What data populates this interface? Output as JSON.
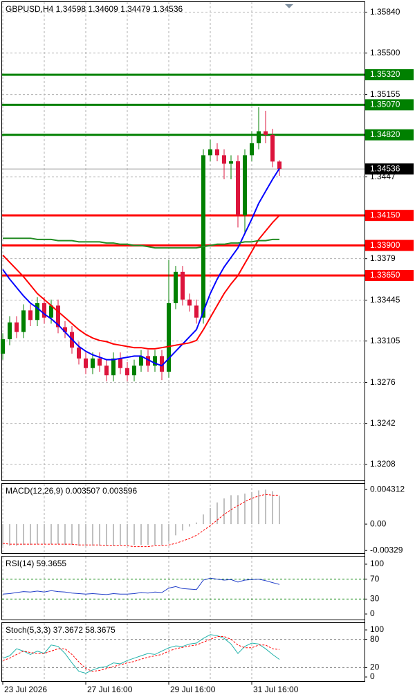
{
  "chart_data": [
    {
      "type": "candlestick",
      "title": "GBPUSD,H4  1.34598 1.34609 1.34479 1.34536",
      "categories": [
        "23 Jul 2026",
        null,
        null,
        null,
        null,
        null,
        null,
        null,
        null,
        null,
        null,
        null,
        "27 Jul 16:00",
        null,
        null,
        null,
        null,
        null,
        null,
        null,
        null,
        null,
        null,
        null,
        "29 Jul 16:00",
        null,
        null,
        null,
        null,
        null,
        null,
        null,
        null,
        null,
        null,
        null,
        "31 Jul 16:00",
        null,
        null,
        null,
        null
      ],
      "open": [
        1.33,
        1.3312,
        1.3326,
        1.3318,
        1.3336,
        1.3328,
        1.3342,
        1.333,
        1.334,
        1.3322,
        1.3318,
        1.3305,
        1.3296,
        1.3288,
        1.3296,
        1.329,
        1.3282,
        1.3296,
        1.3288,
        1.3282,
        1.329,
        1.3298,
        1.329,
        1.3298,
        1.3285,
        1.3342,
        1.3368,
        1.3345,
        1.334,
        1.333,
        1.3465,
        1.347,
        1.3465,
        1.3458,
        1.346,
        1.3415,
        1.3465,
        1.3475,
        1.3485,
        1.3482,
        1.34598
      ],
      "high": [
        1.3317,
        1.3331,
        1.3331,
        1.3341,
        1.3341,
        1.3347,
        1.3347,
        1.3345,
        1.3345,
        1.3327,
        1.3323,
        1.331,
        1.3301,
        1.3301,
        1.3301,
        1.3295,
        1.3301,
        1.3301,
        1.3293,
        1.3295,
        1.3303,
        1.3303,
        1.3303,
        1.3303,
        1.3378,
        1.3373,
        1.3373,
        1.335,
        1.3345,
        1.347,
        1.3478,
        1.3475,
        1.347,
        1.3465,
        1.3465,
        1.347,
        1.3485,
        1.3505,
        1.3502,
        1.3487,
        1.34609
      ],
      "low": [
        1.3295,
        1.3307,
        1.3313,
        1.3313,
        1.3323,
        1.3323,
        1.3325,
        1.3325,
        1.3317,
        1.3313,
        1.33,
        1.3291,
        1.3283,
        1.3283,
        1.3285,
        1.3277,
        1.3277,
        1.3283,
        1.3277,
        1.3277,
        1.3285,
        1.3285,
        1.3285,
        1.3278,
        1.328,
        1.3337,
        1.334,
        1.3335,
        1.3325,
        1.3325,
        1.346,
        1.346,
        1.3445,
        1.3445,
        1.3405,
        1.34,
        1.346,
        1.347,
        1.3475,
        1.3455,
        1.34479
      ],
      "close": [
        1.3312,
        1.3326,
        1.3318,
        1.3336,
        1.3328,
        1.3342,
        1.333,
        1.334,
        1.3322,
        1.3318,
        1.3305,
        1.3296,
        1.3288,
        1.3296,
        1.329,
        1.3282,
        1.3296,
        1.3288,
        1.3282,
        1.329,
        1.3298,
        1.329,
        1.3298,
        1.3285,
        1.3342,
        1.3368,
        1.3345,
        1.334,
        1.333,
        1.3465,
        1.347,
        1.3465,
        1.3458,
        1.346,
        1.3415,
        1.3465,
        1.3475,
        1.3485,
        1.3482,
        1.34598,
        1.34536
      ],
      "up_color": "#008000",
      "down_color": "#dc143c",
      "lines": [
        {
          "color": "#0000ff",
          "values": [
            1.337,
            1.3362,
            1.3355,
            1.3348,
            1.3342,
            1.3338,
            1.3333,
            1.3329,
            1.3324,
            1.3318,
            1.3312,
            1.3306,
            1.3302,
            1.3299,
            1.3297,
            1.3295,
            1.3295,
            1.3296,
            1.3297,
            1.3298,
            1.3298,
            1.3295,
            1.3292,
            1.329,
            1.3296,
            1.3302,
            1.3308,
            1.3314,
            1.332,
            1.3335,
            1.335,
            1.3362,
            1.3372,
            1.338,
            1.3388,
            1.34,
            1.3412,
            1.3425,
            1.3435,
            1.3445,
            1.3454
          ]
        },
        {
          "color": "#ff0000",
          "values": [
            1.3382,
            1.3376,
            1.337,
            1.3364,
            1.3357,
            1.335,
            1.3345,
            1.334,
            1.3335,
            1.333,
            1.3325,
            1.332,
            1.3316,
            1.3313,
            1.3311,
            1.331,
            1.3308,
            1.3307,
            1.3306,
            1.3305,
            1.3305,
            1.3304,
            1.3304,
            1.3305,
            1.3306,
            1.3307,
            1.3308,
            1.3309,
            1.3311,
            1.332,
            1.333,
            1.334,
            1.335,
            1.3358,
            1.3365,
            1.3375,
            1.3385,
            1.3395,
            1.3402,
            1.3409,
            1.3415
          ]
        },
        {
          "color": "#228b22",
          "values": [
            1.3396,
            1.3396,
            1.3396,
            1.3396,
            1.3396,
            1.3395,
            1.3395,
            1.3395,
            1.3394,
            1.3394,
            1.3394,
            1.3393,
            1.3393,
            1.3393,
            1.3393,
            1.3392,
            1.3392,
            1.3391,
            1.3391,
            1.339,
            1.339,
            1.3389,
            1.3388,
            1.3388,
            1.3388,
            1.3388,
            1.3388,
            1.3388,
            1.3388,
            1.3389,
            1.339,
            1.3391,
            1.3391,
            1.3392,
            1.3392,
            1.3393,
            1.3393,
            1.3394,
            1.3394,
            1.3395,
            1.3395
          ]
        }
      ],
      "levels": [
        {
          "value": 1.3532,
          "label": "1.35320",
          "color": "#008000"
        },
        {
          "value": 1.3507,
          "label": "1.35070",
          "color": "#008000"
        },
        {
          "value": 1.3482,
          "label": "1.34820",
          "color": "#008000"
        },
        {
          "value": 1.3415,
          "label": "1.34150",
          "color": "#ff0000"
        },
        {
          "value": 1.339,
          "label": "1.33900",
          "color": "#ff0000"
        },
        {
          "value": 1.3365,
          "label": "1.33650",
          "color": "#ff0000"
        }
      ],
      "last_price": 1.34536,
      "ylim": [
        1.3194,
        1.3593
      ],
      "yticks": [
        {
          "value": 1.3584,
          "label": "1.35840"
        },
        {
          "value": 1.355,
          "label": "1.35500"
        },
        1.35155,
        1.3447,
        1.3379,
        1.33445,
        1.33105,
        1.3276,
        1.3242,
        1.3208
      ],
      "grid": true
    },
    {
      "type": "macd",
      "title": "MACD(12,26,9) 0.003507 0.003596",
      "values": [
        -0.0027,
        -0.0027,
        -0.0027,
        -0.0026,
        -0.0026,
        -0.0025,
        -0.0025,
        -0.0025,
        -0.0025,
        -0.0026,
        -0.0026,
        -0.0027,
        -0.0027,
        -0.0027,
        -0.0027,
        -0.0027,
        -0.0027,
        -0.0026,
        -0.0026,
        -0.0026,
        -0.0026,
        -0.0026,
        -0.0026,
        -0.0026,
        -0.0022,
        -0.0014,
        -0.0008,
        -0.0003,
        0.0002,
        0.0012,
        0.002,
        0.0027,
        0.0032,
        0.0036,
        0.0036,
        0.0038,
        0.004,
        0.0042,
        0.0043,
        0.0041,
        0.003507
      ],
      "signal": [
        -0.0024,
        -0.0025,
        -0.0025,
        -0.0025,
        -0.0025,
        -0.0025,
        -0.0025,
        -0.0025,
        -0.0025,
        -0.0025,
        -0.0025,
        -0.0026,
        -0.0026,
        -0.0026,
        -0.0026,
        -0.0027,
        -0.0027,
        -0.0027,
        -0.0027,
        -0.0028,
        -0.0028,
        -0.0028,
        -0.0027,
        -0.0027,
        -0.0026,
        -0.0024,
        -0.0021,
        -0.0018,
        -0.0014,
        -0.0008,
        -0.0002,
        0.0005,
        0.0012,
        0.0018,
        0.0023,
        0.0028,
        0.0032,
        0.0035,
        0.0037,
        0.0036,
        0.003596
      ],
      "color": "#c0c0c0",
      "signal_color": "#ff0000",
      "ylim": [
        -0.0037,
        0.0051
      ],
      "yticks": [
        0.004312,
        {
          "value": 0,
          "label": "0.00"
        },
        -0.00329
      ]
    },
    {
      "type": "line",
      "title": "RSI(14) 59.3655",
      "series": [
        {
          "color": "#1e3cc8",
          "values": [
            40,
            41,
            43,
            45,
            44,
            46,
            44,
            47,
            45,
            44,
            42,
            41,
            40,
            41,
            40,
            39,
            41,
            40,
            40,
            41,
            43,
            42,
            44,
            43,
            52,
            55,
            51,
            50,
            49,
            68,
            72,
            70,
            68,
            69,
            64,
            68,
            69,
            70,
            67,
            63,
            59.3655
          ]
        }
      ],
      "levels": [
        70,
        30
      ],
      "level_color": "#008000",
      "ylim": [
        0,
        100
      ],
      "yticks": [
        100,
        70,
        30,
        0
      ]
    },
    {
      "type": "line",
      "title": "Stoch(5,3,3) 37.3672 58.3675",
      "series": [
        {
          "color": "#20b2aa",
          "values": [
            40,
            45,
            60,
            55,
            48,
            55,
            50,
            68,
            65,
            50,
            30,
            12,
            8,
            15,
            20,
            22,
            30,
            28,
            35,
            40,
            45,
            50,
            48,
            55,
            62,
            66,
            65,
            70,
            72,
            82,
            90,
            88,
            82,
            70,
            50,
            65,
            72,
            70,
            60,
            48,
            37.3672
          ]
        },
        {
          "color": "#ff0000",
          "dashed": true,
          "values": [
            35,
            40,
            48,
            55,
            52,
            50,
            50,
            55,
            60,
            60,
            48,
            32,
            18,
            12,
            14,
            18,
            22,
            26,
            30,
            33,
            38,
            42,
            45,
            48,
            55,
            60,
            63,
            66,
            68,
            74,
            80,
            86,
            86,
            80,
            68,
            62,
            62,
            68,
            68,
            60,
            58.3675
          ]
        }
      ],
      "levels": [
        80,
        20
      ],
      "level_color": "#808080",
      "ylim": [
        0,
        100
      ],
      "yticks": [
        100,
        80,
        20,
        0
      ]
    }
  ]
}
